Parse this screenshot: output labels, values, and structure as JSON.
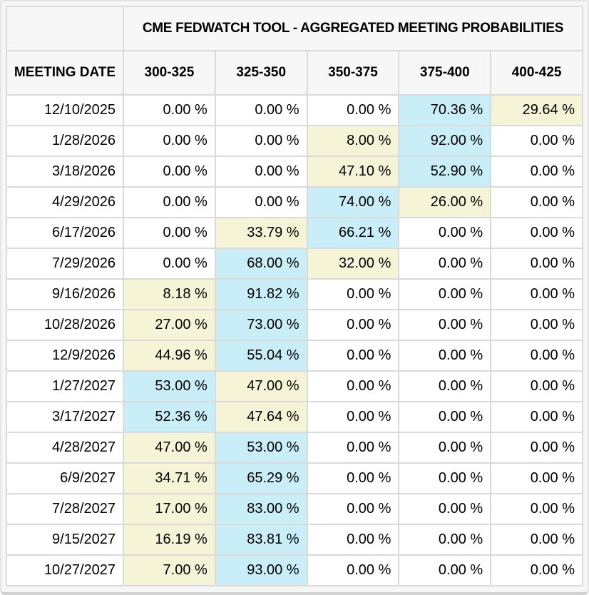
{
  "title": "CME FEDWATCH TOOL - AGGREGATED MEETING PROBABILITIES",
  "columns": [
    "MEETING DATE",
    "300-325",
    "325-350",
    "350-375",
    "375-400",
    "400-425"
  ],
  "rows": [
    {
      "date": "12/10/2025",
      "values": [
        "0.00 %",
        "0.00 %",
        "0.00 %",
        "70.36 %",
        "29.64 %"
      ],
      "highlights": [
        "",
        "",
        "",
        "max",
        "second"
      ]
    },
    {
      "date": "1/28/2026",
      "values": [
        "0.00 %",
        "0.00 %",
        "8.00 %",
        "92.00 %",
        "0.00 %"
      ],
      "highlights": [
        "",
        "",
        "second",
        "max",
        ""
      ]
    },
    {
      "date": "3/18/2026",
      "values": [
        "0.00 %",
        "0.00 %",
        "47.10 %",
        "52.90 %",
        "0.00 %"
      ],
      "highlights": [
        "",
        "",
        "second",
        "max",
        ""
      ]
    },
    {
      "date": "4/29/2026",
      "values": [
        "0.00 %",
        "0.00 %",
        "74.00 %",
        "26.00 %",
        "0.00 %"
      ],
      "highlights": [
        "",
        "",
        "max",
        "second",
        ""
      ]
    },
    {
      "date": "6/17/2026",
      "values": [
        "0.00 %",
        "33.79 %",
        "66.21 %",
        "0.00 %",
        "0.00 %"
      ],
      "highlights": [
        "",
        "second",
        "max",
        "",
        ""
      ]
    },
    {
      "date": "7/29/2026",
      "values": [
        "0.00 %",
        "68.00 %",
        "32.00 %",
        "0.00 %",
        "0.00 %"
      ],
      "highlights": [
        "",
        "max",
        "second",
        "",
        ""
      ]
    },
    {
      "date": "9/16/2026",
      "values": [
        "8.18 %",
        "91.82 %",
        "0.00 %",
        "0.00 %",
        "0.00 %"
      ],
      "highlights": [
        "second",
        "max",
        "",
        "",
        ""
      ]
    },
    {
      "date": "10/28/2026",
      "values": [
        "27.00 %",
        "73.00 %",
        "0.00 %",
        "0.00 %",
        "0.00 %"
      ],
      "highlights": [
        "second",
        "max",
        "",
        "",
        ""
      ]
    },
    {
      "date": "12/9/2026",
      "values": [
        "44.96 %",
        "55.04 %",
        "0.00 %",
        "0.00 %",
        "0.00 %"
      ],
      "highlights": [
        "second",
        "max",
        "",
        "",
        ""
      ]
    },
    {
      "date": "1/27/2027",
      "values": [
        "53.00 %",
        "47.00 %",
        "0.00 %",
        "0.00 %",
        "0.00 %"
      ],
      "highlights": [
        "max",
        "second",
        "",
        "",
        ""
      ]
    },
    {
      "date": "3/17/2027",
      "values": [
        "52.36 %",
        "47.64 %",
        "0.00 %",
        "0.00 %",
        "0.00 %"
      ],
      "highlights": [
        "max",
        "second",
        "",
        "",
        ""
      ]
    },
    {
      "date": "4/28/2027",
      "values": [
        "47.00 %",
        "53.00 %",
        "0.00 %",
        "0.00 %",
        "0.00 %"
      ],
      "highlights": [
        "second",
        "max",
        "",
        "",
        ""
      ]
    },
    {
      "date": "6/9/2027",
      "values": [
        "34.71 %",
        "65.29 %",
        "0.00 %",
        "0.00 %",
        "0.00 %"
      ],
      "highlights": [
        "second",
        "max",
        "",
        "",
        ""
      ]
    },
    {
      "date": "7/28/2027",
      "values": [
        "17.00 %",
        "83.00 %",
        "0.00 %",
        "0.00 %",
        "0.00 %"
      ],
      "highlights": [
        "second",
        "max",
        "",
        "",
        ""
      ]
    },
    {
      "date": "9/15/2027",
      "values": [
        "16.19 %",
        "83.81 %",
        "0.00 %",
        "0.00 %",
        "0.00 %"
      ],
      "highlights": [
        "second",
        "max",
        "",
        "",
        ""
      ]
    },
    {
      "date": "10/27/2027",
      "values": [
        "7.00 %",
        "93.00 %",
        "0.00 %",
        "0.00 %",
        "0.00 %"
      ],
      "highlights": [
        "second",
        "max",
        "",
        "",
        ""
      ]
    }
  ],
  "colors": {
    "highlight_max": "#c9eef8",
    "highlight_second": "#f5f4d7",
    "grid": "#dadada",
    "header_bg": "#f7f7f8",
    "cell_bg": "#ffffff",
    "panel_bg": "#f6f6f7",
    "text": "#000000"
  }
}
